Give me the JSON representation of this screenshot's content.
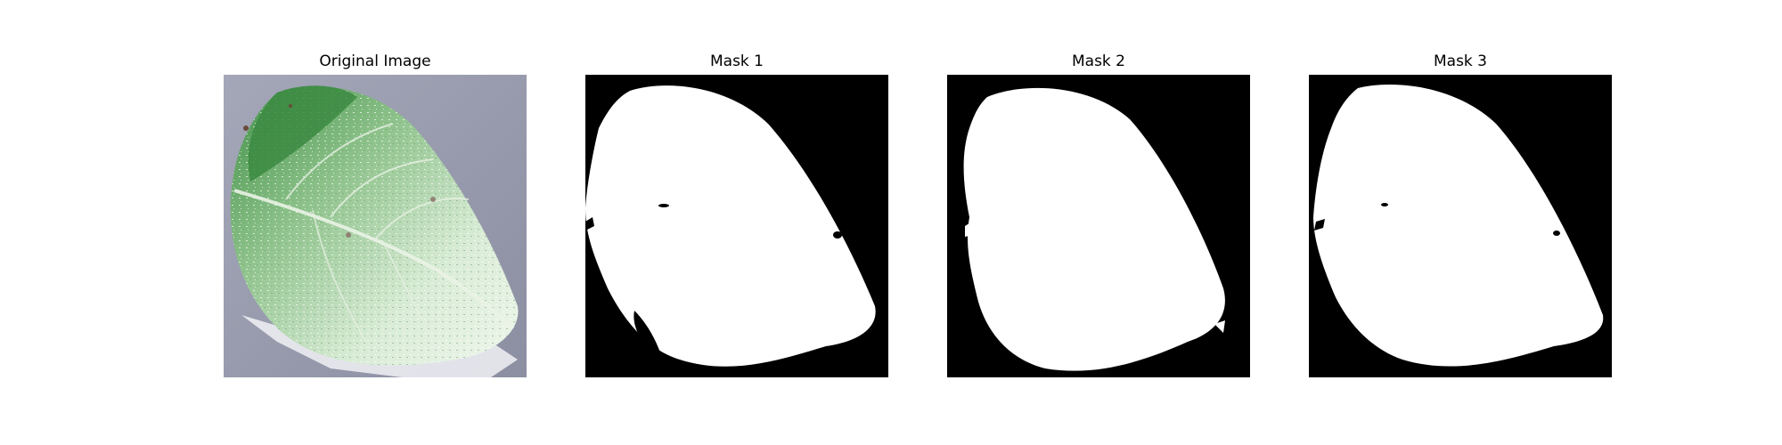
{
  "figure": {
    "panels": [
      {
        "title": "Original Image",
        "kind": "photo"
      },
      {
        "title": "Mask 1",
        "kind": "mask"
      },
      {
        "title": "Mask 2",
        "kind": "mask"
      },
      {
        "title": "Mask 3",
        "kind": "mask"
      }
    ]
  },
  "colors": {
    "mask_background": "#000000",
    "mask_foreground": "#ffffff",
    "photo_background": "#9da0b3",
    "leaf_green": "#4f9e55",
    "leaf_pale": "#dfeedd"
  }
}
